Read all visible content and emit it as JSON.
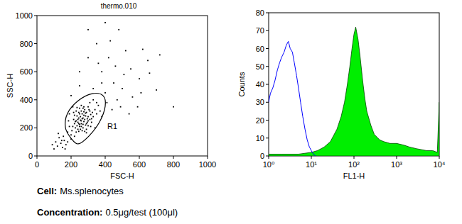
{
  "chart_data": [
    {
      "type": "scatter",
      "title": "thermo.010",
      "x_label": "FSC-H",
      "y_label": "SSC-H",
      "color": "#000000",
      "xlim": [
        0,
        1000
      ],
      "ylim": [
        0,
        1000
      ],
      "xticks": [
        0,
        200,
        400,
        600,
        800,
        1000
      ],
      "yticks": [
        0,
        200,
        400,
        600,
        800,
        1000
      ],
      "x": [
        230,
        245,
        260,
        275,
        250,
        280,
        295,
        265,
        240,
        300,
        220,
        255,
        285,
        310,
        270,
        235,
        290,
        260,
        245,
        275,
        225,
        300,
        315,
        250,
        280,
        230,
        265,
        290,
        240,
        305,
        215,
        255,
        270,
        285,
        320,
        235,
        260,
        295,
        250,
        275,
        210,
        330,
        220,
        300,
        245,
        280,
        315,
        260,
        235,
        290,
        270,
        255,
        240,
        285,
        310,
        265,
        225,
        300,
        275,
        250,
        205,
        325,
        340,
        230,
        290,
        260,
        245,
        320,
        270,
        215,
        200,
        190,
        185,
        350,
        360,
        330,
        210,
        190,
        220,
        340,
        350,
        200,
        180,
        370,
        310,
        140,
        120,
        160,
        110,
        150,
        130,
        170,
        100,
        180,
        125,
        155,
        165,
        90,
        145,
        400,
        450,
        380,
        500,
        420,
        550,
        470,
        600,
        350,
        520,
        650,
        700,
        480,
        400,
        560,
        620,
        720,
        800,
        380,
        440,
        360,
        590,
        510,
        300,
        430,
        660,
        250,
        330,
        460,
        540,
        610,
        300,
        410,
        250,
        200,
        490,
        380
      ],
      "y": [
        250,
        270,
        230,
        290,
        210,
        260,
        240,
        300,
        190,
        280,
        230,
        255,
        220,
        260,
        200,
        285,
        310,
        320,
        230,
        245,
        200,
        215,
        295,
        300,
        330,
        320,
        180,
        190,
        260,
        330,
        260,
        190,
        270,
        285,
        240,
        215,
        250,
        265,
        340,
        350,
        210,
        280,
        290,
        350,
        175,
        175,
        210,
        360,
        345,
        230,
        225,
        280,
        240,
        305,
        320,
        265,
        245,
        250,
        315,
        225,
        180,
        310,
        330,
        170,
        165,
        210,
        310,
        265,
        340,
        310,
        150,
        210,
        250,
        380,
        360,
        400,
        350,
        300,
        140,
        200,
        300,
        120,
        170,
        320,
        380,
        90,
        70,
        110,
        100,
        60,
        130,
        80,
        50,
        100,
        160,
        140,
        50,
        80,
        110,
        450,
        520,
        600,
        480,
        700,
        620,
        400,
        550,
        800,
        750,
        680,
        470,
        900,
        950,
        420,
        760,
        720,
        350,
        520,
        330,
        660,
        350,
        580,
        700,
        820,
        590,
        600,
        480,
        640,
        300,
        450,
        900,
        380,
        500,
        430,
        350,
        280
      ],
      "gate": {
        "label": "R1",
        "x": [
          200,
          167,
          179,
          242,
          325,
          388,
          400,
          367,
          304,
          242
        ],
        "y": [
          126,
          202,
          303,
          394,
          444,
          429,
          354,
          242,
          141,
          86
        ]
      }
    },
    {
      "type": "line",
      "log": "x",
      "x_label": "FL1-H",
      "y_label": "Counts",
      "xlim": [
        1,
        10000
      ],
      "ylim": [
        0,
        80
      ],
      "xticks": [
        {
          "value": 1,
          "label": "10⁰"
        },
        {
          "value": 10,
          "label": "10¹"
        },
        {
          "value": 100,
          "label": "10²"
        },
        {
          "value": 1000,
          "label": "10³"
        },
        {
          "value": 10000,
          "label": "10⁴"
        }
      ],
      "yticks": [
        0,
        10,
        20,
        30,
        40,
        50,
        60,
        70,
        80
      ],
      "series": [
        {
          "type": "area",
          "color": "#00ee00",
          "x": [
            1,
            2,
            5,
            10,
            14,
            20,
            28,
            40,
            50,
            60,
            70,
            80,
            90,
            100,
            110,
            125,
            140,
            160,
            180,
            200,
            250,
            300,
            400,
            500,
            700,
            1000,
            1500,
            2000,
            3000,
            5000,
            7000,
            9000,
            10000
          ],
          "values": [
            1,
            1,
            1,
            2,
            3,
            5,
            8,
            15,
            22,
            30,
            40,
            50,
            60,
            68,
            72,
            65,
            55,
            42,
            32,
            25,
            17,
            12,
            9,
            8,
            7,
            7,
            6,
            5,
            4,
            3,
            3,
            2,
            30
          ]
        },
        {
          "type": "line",
          "color": "#0000ff",
          "x": [
            1,
            1.1,
            1.25,
            1.4,
            1.6,
            1.8,
            2,
            2.3,
            2.6,
            2.9,
            3.2,
            3.6,
            4,
            4.5,
            5,
            5.6,
            6.3,
            7.1,
            8,
            9,
            10,
            11.2,
            12.6
          ],
          "values": [
            30,
            35,
            38,
            42,
            48,
            52,
            55,
            58,
            62,
            64,
            60,
            58,
            52,
            45,
            38,
            30,
            22,
            15,
            9,
            5,
            3,
            1,
            0
          ]
        }
      ]
    }
  ],
  "captions": [
    {
      "label": "Cell:",
      "value": "Ms.splenocytes"
    },
    {
      "label": "Concentration:",
      "value": "0.5μg/test (100μl)"
    }
  ]
}
